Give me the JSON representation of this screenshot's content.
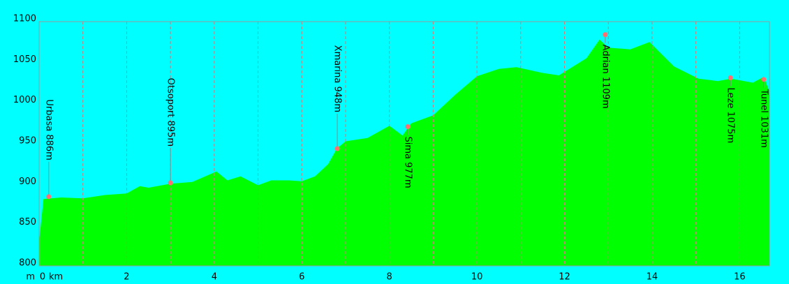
{
  "chart_data": {
    "type": "area",
    "x_unit": "km",
    "y_unit": "m",
    "color": "#00ff00",
    "background": "#00ffff",
    "xlim": [
      0,
      16.68
    ],
    "ylim": [
      800,
      1100
    ],
    "xticks": [
      0,
      2,
      4,
      6,
      8,
      10,
      12,
      14,
      16
    ],
    "x_grid": [
      1,
      2,
      3,
      4,
      5,
      6,
      7,
      8,
      9,
      10,
      11,
      12,
      13,
      14,
      15,
      16
    ],
    "yticks": [
      800,
      850,
      900,
      950,
      1000,
      1050,
      1100
    ],
    "x": [
      0,
      0.1,
      0.5,
      1,
      1.5,
      2,
      2.3,
      2.5,
      3,
      3.5,
      4.05,
      4.3,
      4.6,
      5,
      5.3,
      5.7,
      6,
      6.3,
      6.6,
      6.8,
      7,
      7.5,
      8,
      8.3,
      8.5,
      9,
      9.5,
      10,
      10.5,
      10.9,
      11.5,
      11.87,
      12.5,
      12.8,
      13,
      13.5,
      13.94,
      14.5,
      15.06,
      15.5,
      15.8,
      16,
      16.3,
      16.55,
      16.68
    ],
    "values": [
      830,
      882,
      884,
      883,
      887,
      889,
      898,
      896,
      901,
      903,
      916,
      905,
      910,
      899,
      905,
      905,
      904,
      910,
      925,
      944,
      953,
      957,
      972,
      960,
      975,
      985,
      1010,
      1033,
      1042,
      1044,
      1037,
      1034,
      1055,
      1078,
      1068,
      1066,
      1075,
      1045,
      1030,
      1027,
      1030,
      1028,
      1025,
      1032,
      1014
    ],
    "waypoints": [
      {
        "label": "Urbasa 886m",
        "x": 0.22,
        "y": 885,
        "position": "above"
      },
      {
        "label": "Otsoport 895m",
        "x": 3.0,
        "y": 902,
        "position": "above"
      },
      {
        "label": "Xmarina 948m",
        "x": 6.81,
        "y": 944,
        "position": "above"
      },
      {
        "label": "Sima 977m",
        "x": 8.42,
        "y": 971,
        "position": "below"
      },
      {
        "label": "Adrian 1109m",
        "x": 12.93,
        "y": 1084,
        "position": "below"
      },
      {
        "label": "Leze 1075m",
        "x": 15.79,
        "y": 1031,
        "position": "below"
      },
      {
        "label": "Tunel 1031m",
        "x": 16.55,
        "y": 1029,
        "position": "below"
      }
    ]
  }
}
